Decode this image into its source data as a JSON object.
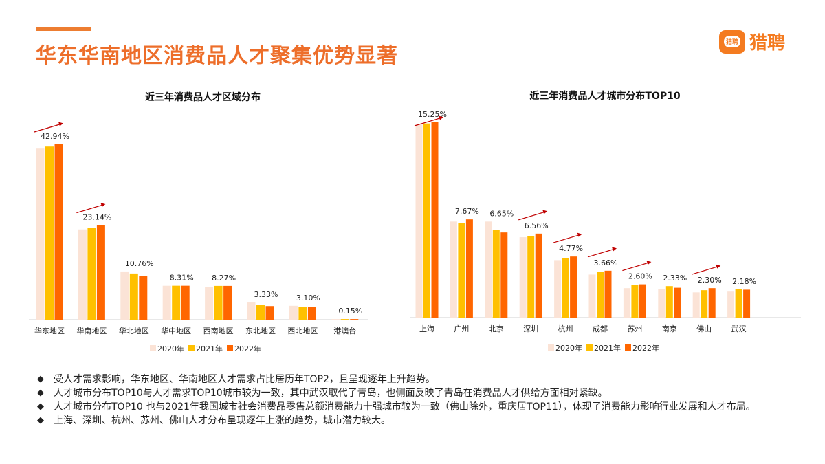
{
  "slide": {
    "title": "华东华南地区消费品人才聚集优势显著",
    "logo_text": "猎聘",
    "accent_color": "#ED6E2A",
    "bullets": [
      "受人才需求影响，华东地区、华南地区人才需求占比居历年TOP2，且呈现逐年上升趋势。",
      "人才城市分布TOP10与人才需求TOP10城市较为一致，其中武汉取代了青岛，也侧面反映了青岛在消费品人才供给方面相对紧缺。",
      "人才城市分布TOP10 也与2021年我国城市社会消费品零售总额消费能力十强城市较为一致（佛山除外，重庆居TOP11），体现了消费能力影响行业发展和人才布局。",
      "上海、深圳、杭州、苏州、佛山人才分布呈现逐年上涨的趋势，城市潜力较大。"
    ],
    "bullet_icon": "diamond-bullet-icon"
  },
  "chart_data": [
    {
      "type": "bar",
      "title": "近三年消费品人才区域分布",
      "categories": [
        "华东地区",
        "华南地区",
        "华北地区",
        "华中地区",
        "西南地区",
        "东北地区",
        "西北地区",
        "港澳台"
      ],
      "series": [
        {
          "name": "2020年",
          "color": "#FBE3D6",
          "values": [
            41.9,
            22.1,
            11.8,
            8.3,
            8.0,
            4.2,
            3.4,
            0.15
          ]
        },
        {
          "name": "2021年",
          "color": "#FFC000",
          "values": [
            42.4,
            22.4,
            11.3,
            8.31,
            8.27,
            3.7,
            3.2,
            0.15
          ]
        },
        {
          "name": "2022年",
          "color": "#FF6600",
          "values": [
            42.94,
            23.14,
            10.76,
            8.31,
            8.27,
            3.33,
            3.1,
            0.15
          ]
        }
      ],
      "data_labels": [
        "42.94%",
        "23.14%",
        "10.76%",
        "8.31%",
        "8.27%",
        "3.33%",
        "3.10%",
        "0.15%"
      ],
      "trend_arrows": [
        "华东地区",
        "华南地区"
      ],
      "arrow_color": "#C00000",
      "ylim": [
        0,
        45
      ],
      "grid": false,
      "legend": "bottom"
    },
    {
      "type": "bar",
      "title": "近三年消费品人才城市分布TOP10",
      "categories": [
        "上海",
        "广州",
        "北京",
        "深圳",
        "杭州",
        "成都",
        "苏州",
        "南京",
        "佛山",
        "武汉"
      ],
      "series": [
        {
          "name": "2020年",
          "color": "#FBE3D6",
          "values": [
            15.07,
            7.5,
            7.5,
            6.28,
            4.49,
            3.36,
            2.3,
            2.21,
            1.97,
            2.03
          ]
        },
        {
          "name": "2021年",
          "color": "#FFC000",
          "values": [
            15.16,
            7.36,
            6.87,
            6.37,
            4.65,
            3.59,
            2.55,
            2.46,
            2.14,
            2.21
          ]
        },
        {
          "name": "2022年",
          "color": "#FF6600",
          "values": [
            15.25,
            7.67,
            6.65,
            6.56,
            4.77,
            3.66,
            2.6,
            2.33,
            2.3,
            2.18
          ]
        }
      ],
      "data_labels": [
        "15.25%",
        "7.67%",
        "6.65%",
        "6.56%",
        "4.77%",
        "3.66%",
        "2.60%",
        "2.33%",
        "2.30%",
        "2.18%"
      ],
      "trend_arrows": [
        "上海",
        "深圳",
        "杭州",
        "成都",
        "苏州",
        "佛山"
      ],
      "arrow_color": "#C00000",
      "ylim": [
        0,
        16
      ],
      "grid": false,
      "legend": "bottom"
    }
  ]
}
